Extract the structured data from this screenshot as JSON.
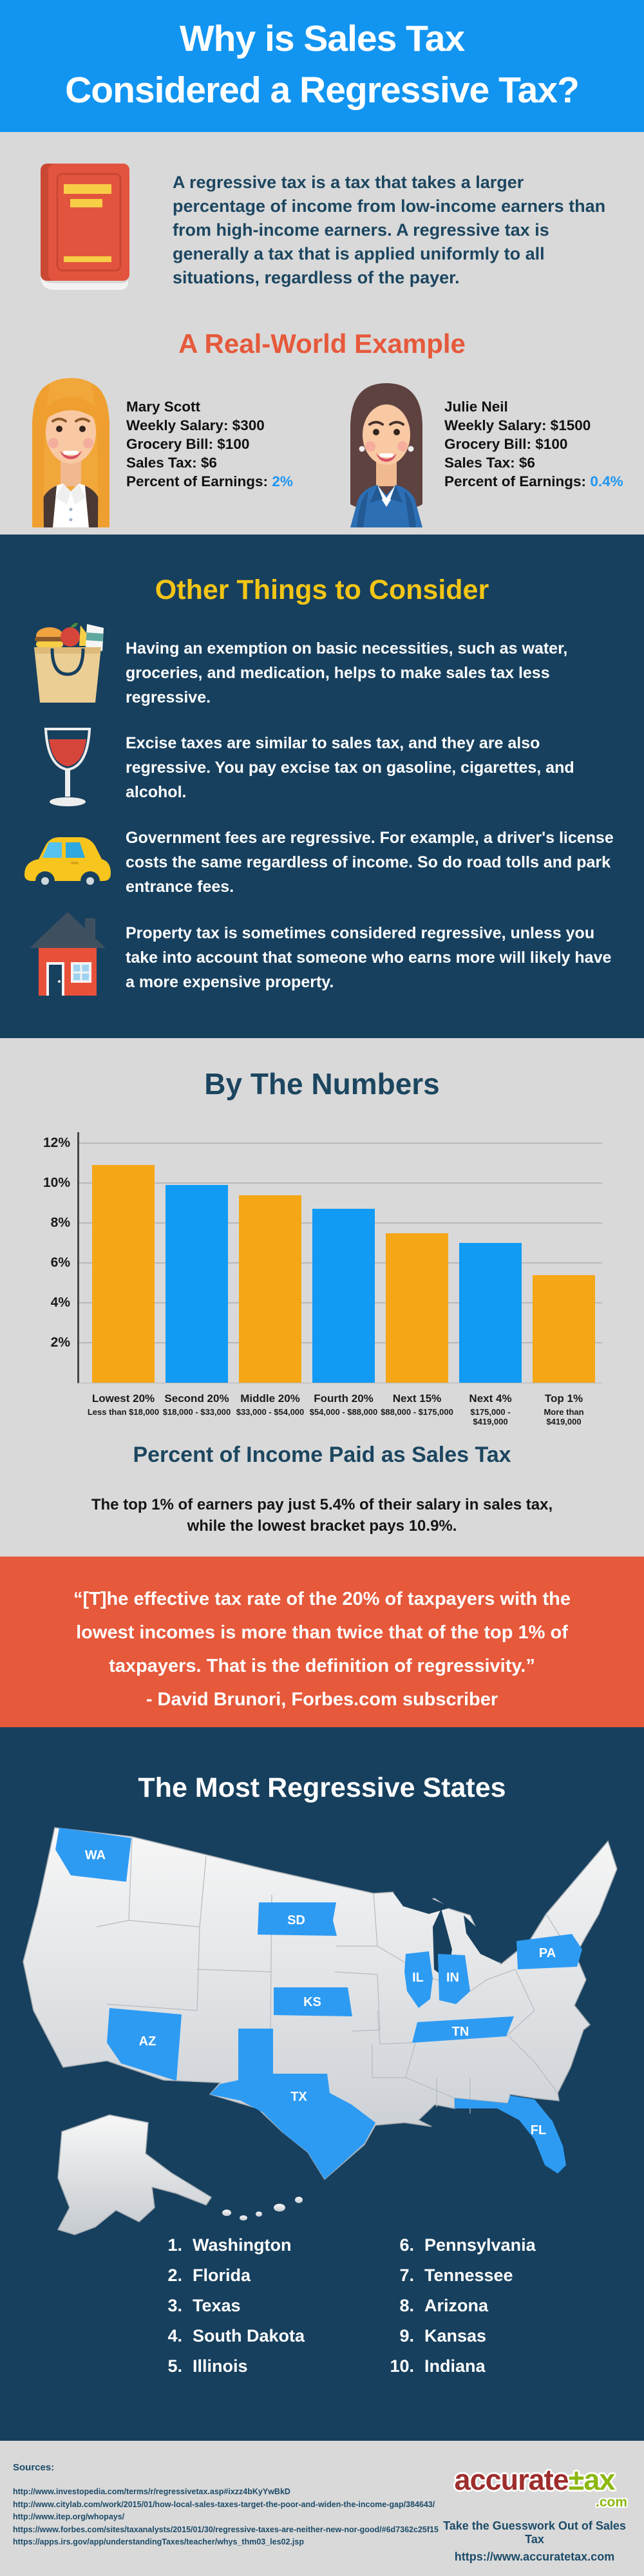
{
  "header": {
    "title_line1": "Why is Sales Tax",
    "title_line2": "Considered a Regressive Tax?"
  },
  "definition": {
    "icon": "book-icon",
    "text": "A regressive tax is a tax that takes a larger percentage of income from low-income earners than from high-income earners. A regressive tax is generally a tax that is applied uniformly to all situations, regardless of the payer."
  },
  "example": {
    "heading": "A Real-World Example",
    "people": [
      {
        "name": "Mary Scott",
        "lines": [
          "Weekly Salary: $300",
          "Grocery Bill: $100",
          "Sales Tax: $6"
        ],
        "percent_label": "Percent of Earnings:",
        "percent_value": "2%"
      },
      {
        "name": "Julie Neil",
        "lines": [
          "Weekly Salary: $1500",
          "Grocery Bill: $100",
          "Sales Tax: $6"
        ],
        "percent_label": "Percent of Earnings:",
        "percent_value": "0.4%"
      }
    ]
  },
  "consider": {
    "heading": "Other Things to Consider",
    "items": [
      {
        "icon": "grocery-bag-icon",
        "text": "Having an exemption on basic necessities, such as water, groceries, and medication, helps to make sales tax less regressive."
      },
      {
        "icon": "wine-glass-icon",
        "text": "Excise taxes are similar to sales tax, and they are also regressive. You pay excise tax on gasoline, cigarettes, and alcohol."
      },
      {
        "icon": "car-icon",
        "text": "Government fees are regressive. For example, a driver's license costs the same regardless of income. So do road tolls and park entrance fees."
      },
      {
        "icon": "house-icon",
        "text": "Property tax is sometimes considered regressive, unless you take into account that someone who earns more will likely have a more expensive property."
      }
    ]
  },
  "numbers": {
    "heading": "By The Numbers",
    "subtitle": "Percent of Income Paid as Sales Tax",
    "caption_line1": "The top 1% of earners pay just 5.4% of their salary in sales tax,",
    "caption_line2": "while the lowest bracket pays 10.9%."
  },
  "chart_data": {
    "type": "bar",
    "title": "Percent of Income Paid as Sales Tax",
    "categories": [
      "Lowest 20%",
      "Second 20%",
      "Middle 20%",
      "Fourth 20%",
      "Next 15%",
      "Next 4%",
      "Top 1%"
    ],
    "category_ranges": [
      "Less than $18,000",
      "$18,000 - $33,000",
      "$33,000 - $54,000",
      "$54,000 - $88,000",
      "$88,000 - $175,000",
      "$175,000 - $419,000",
      "More than $419,000"
    ],
    "values": [
      10.9,
      9.9,
      9.4,
      8.7,
      7.5,
      7.0,
      5.4
    ],
    "y_ticks": [
      12,
      10,
      8,
      6,
      4,
      2
    ],
    "ylim": [
      0,
      12.6
    ],
    "grid": true,
    "legend": false,
    "xlabel": "",
    "ylabel": "",
    "bar_colors": [
      "#F5A717",
      "#119BF5"
    ]
  },
  "quote": {
    "lines": [
      "“[T]he effective tax rate of the 20% of taxpayers with the",
      "lowest incomes is more than twice that of the top 1% of",
      "taxpayers. That is the definition of regressivity.”"
    ],
    "attribution": "- David Brunori, Forbes.com subscriber"
  },
  "states": {
    "heading": "The Most Regressive States",
    "map_labels": [
      "WA",
      "SD",
      "PA",
      "IL",
      "IN",
      "KS",
      "AZ",
      "TX",
      "TN",
      "FL"
    ],
    "list": [
      {
        "rank": "1.",
        "name": "Washington"
      },
      {
        "rank": "2.",
        "name": "Florida"
      },
      {
        "rank": "3.",
        "name": "Texas"
      },
      {
        "rank": "4.",
        "name": "South Dakota"
      },
      {
        "rank": "5.",
        "name": "Illinois"
      },
      {
        "rank": "6.",
        "name": "Pennsylvania"
      },
      {
        "rank": "7.",
        "name": "Tennessee"
      },
      {
        "rank": "8.",
        "name": "Arizona"
      },
      {
        "rank": "9.",
        "name": "Kansas"
      },
      {
        "rank": "10.",
        "name": "Indiana"
      }
    ]
  },
  "footer": {
    "sources_label": "Sources:",
    "sources": [
      "http://www.investopedia.com/terms/r/regressivetax.asp#ixzz4bKyYwBkD",
      "http://www.citylab.com/work/2015/01/how-local-sales-taxes-target-the-poor-and-widen-the-income-gap/384643/",
      "http://www.itep.org/whopays/",
      "https://www.forbes.com/sites/taxanalysts/2015/01/30/regressive-taxes-are-neither-new-nor-good/#6d7362c25f15",
      "https://apps.irs.gov/app/understandingTaxes/teacher/whys_thm03_les02.jsp"
    ],
    "logo": {
      "part1": "accurate",
      "part2": "±ax",
      "domain": ".com"
    },
    "tagline": "Take the Guesswork Out of Sales Tax",
    "url": "https://www.accuratetax.com"
  },
  "colors": {
    "header_blue": "#1295F1",
    "navy": "#17405E",
    "light_gray": "#D9D9D9",
    "orange": "#E6593B",
    "yellow": "#F3C515",
    "bar_orange": "#F5A717",
    "bar_blue": "#119BF5",
    "accent_blue": "#1E96F0",
    "logo_red": "#9E2D2D",
    "logo_green": "#8CB811",
    "text_navy": "#1C4660"
  }
}
